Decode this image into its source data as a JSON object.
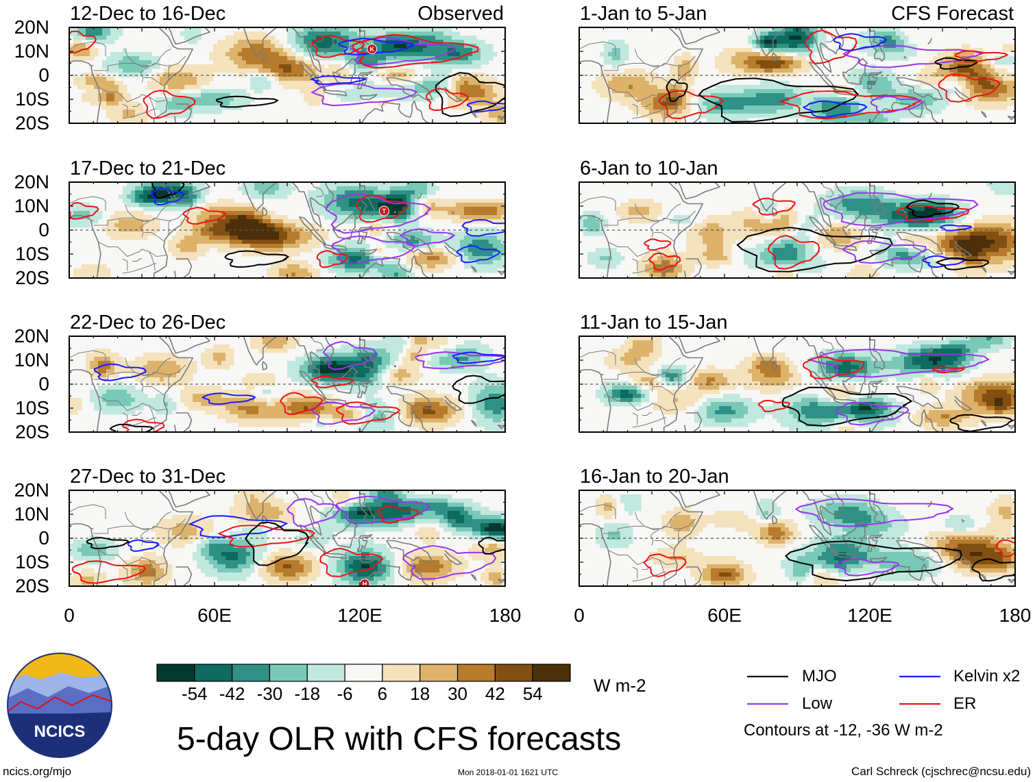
{
  "chart_data": {
    "type": "heatmap",
    "title": "5-day OLR with CFS forecasts",
    "units": "W m-2",
    "xlim": [
      0,
      180
    ],
    "ylim": [
      -20,
      20
    ],
    "xticks": [
      "0",
      "60E",
      "120E",
      "180"
    ],
    "yticks": [
      "20N",
      "10N",
      "0",
      "10S",
      "20S"
    ],
    "colorbar": {
      "levels": [
        "-54",
        "-42",
        "-30",
        "-18",
        "-6",
        "6",
        "18",
        "30",
        "42",
        "54"
      ],
      "colors": [
        "#05392f",
        "#0d6b5f",
        "#2f9185",
        "#7ac9b8",
        "#c1e8de",
        "#f7f7f5",
        "#f4e2bd",
        "#ddb26b",
        "#b67b2d",
        "#824f12",
        "#4d2f0b"
      ]
    },
    "contour_note": "Contours at -12, -36 W m-2",
    "legend": [
      {
        "name": "MJO",
        "color": "#000000"
      },
      {
        "name": "Kelvin x2",
        "color": "#1a1aff"
      },
      {
        "name": "Low",
        "color": "#9933ee"
      },
      {
        "name": "ER",
        "color": "#ee1111"
      }
    ],
    "panels": [
      {
        "period": "12-Dec to 16-Dec",
        "label": "Observed",
        "source": "observed",
        "storm": "K"
      },
      {
        "period": "17-Dec to 21-Dec",
        "label": "",
        "source": "observed",
        "storm": "T"
      },
      {
        "period": "22-Dec to 26-Dec",
        "label": "",
        "source": "observed",
        "storm": ""
      },
      {
        "period": "27-Dec to 31-Dec",
        "label": "",
        "source": "observed",
        "storm": "H"
      },
      {
        "period": "1-Jan to 5-Jan",
        "label": "CFS Forecast",
        "source": "forecast",
        "storm": ""
      },
      {
        "period": "6-Jan to 10-Jan",
        "label": "",
        "source": "forecast",
        "storm": ""
      },
      {
        "period": "11-Jan to 15-Jan",
        "label": "",
        "source": "forecast",
        "storm": ""
      },
      {
        "period": "16-Jan to 20-Jan",
        "label": "",
        "source": "forecast",
        "storm": ""
      }
    ]
  },
  "footer": {
    "logo_text": "NCICS",
    "website": "ncics.org/mjo",
    "timestamp": "Mon 2018-01-01 1621 UTC",
    "credit": "Carl Schreck (cjschrec@ncsu.edu)"
  }
}
